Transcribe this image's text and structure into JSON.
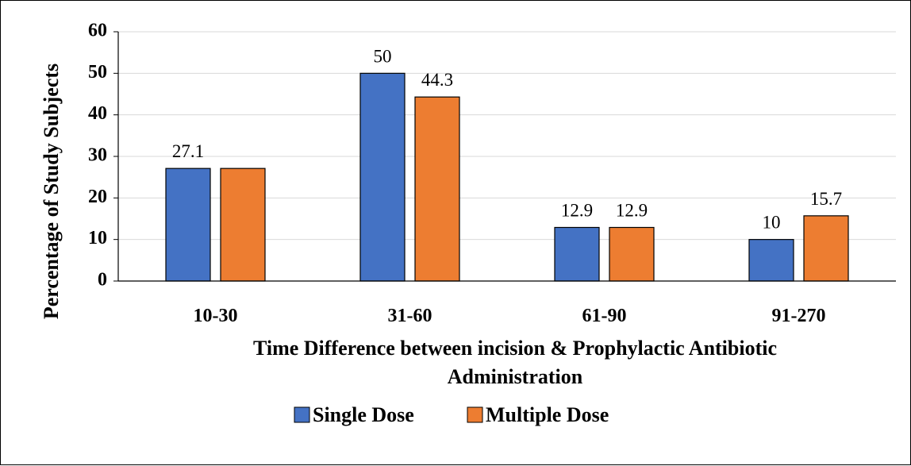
{
  "chart_data": {
    "type": "bar",
    "categories": [
      "10-30",
      "31-60",
      "61-90",
      "91-270"
    ],
    "series": [
      {
        "name": "Single Dose",
        "values": [
          27.1,
          50,
          12.9,
          10
        ],
        "color": "#4472C4",
        "labels": [
          "27.1",
          "50",
          "12.9",
          "10"
        ]
      },
      {
        "name": "Multiple Dose",
        "values": [
          27.1,
          44.3,
          12.9,
          15.7
        ],
        "color": "#ED7D31",
        "labels": [
          "",
          "44.3",
          "12.9",
          "15.7"
        ]
      }
    ],
    "xlabel_lines": [
      "Time Difference between incision & Prophylactic Antibiotic",
      "Administration"
    ],
    "ylabel": "Percentage of Study Subjects",
    "ylim": [
      0,
      60
    ],
    "yticks": [
      0,
      10,
      20,
      30,
      40,
      50,
      60
    ],
    "grid": true,
    "legend_position": "bottom"
  }
}
